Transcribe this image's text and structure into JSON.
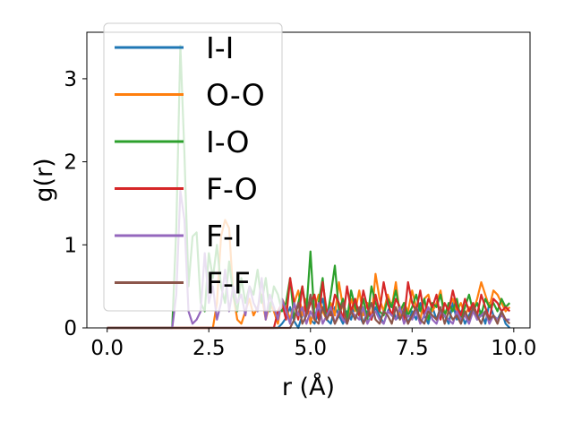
{
  "chart_data": {
    "type": "line",
    "title": "",
    "xlabel": "r (Å)",
    "ylabel": "g(r)",
    "xlim": [
      -0.5,
      10.4
    ],
    "ylim": [
      0,
      3.56
    ],
    "xticks": [
      0.0,
      2.5,
      5.0,
      7.5,
      10.0
    ],
    "xtick_labels": [
      "0.0",
      "2.5",
      "5.0",
      "7.5",
      "10.0"
    ],
    "yticks": [
      0,
      1,
      2,
      3
    ],
    "ytick_labels": [
      "0",
      "1",
      "2",
      "3"
    ],
    "grid": false,
    "legend_position": "top-left",
    "x": [
      0.0,
      0.2,
      0.4,
      0.6,
      0.8,
      1.0,
      1.2,
      1.4,
      1.6,
      1.7,
      1.8,
      1.9,
      2.0,
      2.1,
      2.2,
      2.3,
      2.4,
      2.5,
      2.6,
      2.7,
      2.8,
      2.9,
      3.0,
      3.1,
      3.2,
      3.3,
      3.4,
      3.5,
      3.6,
      3.7,
      3.8,
      3.9,
      4.0,
      4.1,
      4.2,
      4.3,
      4.4,
      4.5,
      4.6,
      4.7,
      4.8,
      4.9,
      5.0,
      5.1,
      5.2,
      5.3,
      5.4,
      5.5,
      5.6,
      5.7,
      5.8,
      5.9,
      6.0,
      6.1,
      6.2,
      6.3,
      6.4,
      6.5,
      6.6,
      6.7,
      6.8,
      6.9,
      7.0,
      7.1,
      7.2,
      7.3,
      7.4,
      7.5,
      7.6,
      7.7,
      7.8,
      7.9,
      8.0,
      8.1,
      8.2,
      8.3,
      8.4,
      8.5,
      8.6,
      8.7,
      8.8,
      8.9,
      9.0,
      9.1,
      9.2,
      9.3,
      9.4,
      9.5,
      9.6,
      9.7,
      9.8,
      9.9
    ],
    "series": [
      {
        "name": "I-I",
        "color": "#1f77b4",
        "values": [
          0,
          0,
          0,
          0,
          0,
          0,
          0,
          0,
          0,
          0,
          0,
          0,
          0,
          0,
          0,
          0,
          0,
          0,
          0,
          0,
          0,
          0,
          0,
          0,
          0,
          0,
          0,
          0,
          0,
          0,
          0,
          0,
          0,
          0,
          0,
          0.05,
          0.12,
          0.25,
          0.08,
          0,
          0.15,
          0.3,
          0.1,
          0.05,
          0.2,
          0.35,
          0.1,
          0.05,
          0.25,
          0.15,
          0.05,
          0.2,
          0.1,
          0.3,
          0.15,
          0.05,
          0.2,
          0.1,
          0.25,
          0.15,
          0.05,
          0.2,
          0.3,
          0.1,
          0.15,
          0.25,
          0.05,
          0.2,
          0.1,
          0.3,
          0.15,
          0.05,
          0.25,
          0.1,
          0.2,
          0.15,
          0.05,
          0.3,
          0.1,
          0.2,
          0.05,
          0.15,
          0.25,
          0.1,
          0.2,
          0.05,
          0.3,
          0.15,
          0.1,
          0.2,
          0.05,
          0
        ]
      },
      {
        "name": "O-O",
        "color": "#ff7f0e",
        "values": [
          0,
          0,
          0,
          0,
          0,
          0,
          0,
          0,
          0,
          0,
          0,
          0,
          0,
          0,
          0,
          0,
          0,
          0,
          0,
          0.3,
          1.1,
          1.3,
          1.2,
          0.4,
          0.1,
          0.05,
          0.2,
          0.35,
          0.15,
          0.25,
          0.4,
          0.1,
          0.3,
          0.2,
          0.05,
          0.35,
          0.25,
          0.1,
          0.3,
          0.45,
          0.15,
          0.35,
          0.05,
          0.25,
          0.4,
          0.2,
          0.1,
          0.3,
          0.15,
          0.55,
          0.25,
          0.05,
          0.35,
          0.2,
          0.45,
          0.15,
          0.3,
          0.1,
          0.65,
          0.35,
          0.2,
          0.4,
          0.25,
          0.55,
          0.15,
          0.3,
          0.2,
          0.45,
          0.25,
          0.1,
          0.35,
          0.4,
          0.2,
          0.3,
          0.45,
          0.15,
          0.25,
          0.35,
          0.2,
          0.3,
          0.15,
          0.25,
          0.2,
          0.35,
          0.55,
          0.4,
          0.25,
          0.45,
          0.4,
          0.3,
          0.2,
          0.25
        ]
      },
      {
        "name": "I-O",
        "color": "#2ca02c",
        "values": [
          0,
          0,
          0,
          0,
          0,
          0,
          0,
          0,
          0,
          1.2,
          3.4,
          2.1,
          0.5,
          1.1,
          1.15,
          0.3,
          0.2,
          0.9,
          0.6,
          1.0,
          0.5,
          0.3,
          0.8,
          0.4,
          0.2,
          0.6,
          0.3,
          0.5,
          0.4,
          0.7,
          0.3,
          0.6,
          0.2,
          0.5,
          0.4,
          0.2,
          0.3,
          0.6,
          0.1,
          0.3,
          0.5,
          0.2,
          0.92,
          0.1,
          0.3,
          0.6,
          0.1,
          0.4,
          0.75,
          0.2,
          0.35,
          0.1,
          0.45,
          0.25,
          0.15,
          0.35,
          0.1,
          0.5,
          0.3,
          0.2,
          0.15,
          0.35,
          0.25,
          0.45,
          0.2,
          0.3,
          0.15,
          0.25,
          0.4,
          0.2,
          0.35,
          0.1,
          0.3,
          0.25,
          0.4,
          0.15,
          0.3,
          0.2,
          0.35,
          0.1,
          0.25,
          0.4,
          0.2,
          0.3,
          0.15,
          0.35,
          0.25,
          0.3,
          0.2,
          0.35,
          0.25,
          0.3
        ]
      },
      {
        "name": "F-O",
        "color": "#d62728",
        "values": [
          0,
          0,
          0,
          0,
          0,
          0,
          0,
          0,
          0,
          0,
          0,
          0,
          0,
          0,
          0,
          0,
          0,
          0,
          0,
          0,
          0,
          0,
          0,
          0,
          0,
          0,
          0,
          0,
          0,
          0,
          0,
          0,
          0,
          0,
          0.2,
          0.3,
          0.1,
          0.6,
          0.3,
          0.1,
          0.5,
          0.15,
          0.3,
          0.4,
          0.1,
          0.55,
          0.2,
          0.15,
          0.4,
          0.3,
          0.1,
          0.5,
          0.2,
          0.35,
          0.15,
          0.45,
          0.25,
          0.1,
          0.4,
          0.2,
          0.55,
          0.3,
          0.15,
          0.35,
          0.25,
          0.1,
          0.55,
          0.3,
          0.2,
          0.45,
          0.15,
          0.35,
          0.25,
          0.4,
          0.1,
          0.3,
          0.2,
          0.45,
          0.25,
          0.15,
          0.35,
          0.2,
          0.3,
          0.15,
          0.4,
          0.25,
          0.1,
          0.35,
          0.3,
          0.2,
          0.25,
          0.2
        ]
      },
      {
        "name": "F-I",
        "color": "#9467bd",
        "values": [
          0,
          0,
          0,
          0,
          0,
          0,
          0,
          0,
          0,
          0.4,
          1.65,
          1.3,
          0.2,
          0.05,
          0.1,
          0.2,
          0.9,
          0.3,
          0.5,
          0.1,
          0.3,
          0.7,
          0.2,
          0.5,
          0.3,
          0.4,
          0.15,
          0.5,
          0.3,
          0.2,
          0.6,
          0.1,
          0.4,
          0.25,
          0.1,
          0.35,
          0.2,
          0.05,
          0.3,
          0.15,
          0.25,
          0.05,
          0.2,
          0.1,
          0.3,
          0.05,
          0.15,
          0.25,
          0.05,
          0.2,
          0.1,
          0.05,
          0.2,
          0.15,
          0.1,
          0.25,
          0.05,
          0.15,
          0.2,
          0.1,
          0.05,
          0.2,
          0.15,
          0.1,
          0.25,
          0.05,
          0.15,
          0.1,
          0.2,
          0.05,
          0.15,
          0.25,
          0.1,
          0.05,
          0.2,
          0.15,
          0.1,
          0.05,
          0.2,
          0.1,
          0.15,
          0.05,
          0.2,
          0.1,
          0.15,
          0.2,
          0.05,
          0.15,
          0.1,
          0.15,
          0.1,
          0.1
        ]
      },
      {
        "name": "F-F",
        "color": "#8c564b",
        "values": [
          0,
          0,
          0,
          0,
          0,
          0,
          0,
          0,
          0,
          0,
          0,
          0,
          0,
          0,
          0,
          0,
          0,
          0,
          0,
          0,
          0,
          0,
          0,
          0,
          0,
          0,
          0,
          0,
          0,
          0,
          0,
          0,
          0,
          0,
          0,
          0,
          0,
          0,
          0.1,
          0.3,
          0.05,
          0.15,
          0.4,
          0.1,
          0.05,
          0.25,
          0.1,
          0.2,
          0.05,
          0.15,
          0.3,
          0.05,
          0.2,
          0.1,
          0.25,
          0.05,
          0.15,
          0.3,
          0.1,
          0.05,
          0.2,
          0.15,
          0.05,
          0.25,
          0.1,
          0.2,
          0.05,
          0.15,
          0.25,
          0.1,
          0.05,
          0.2,
          0.15,
          0.1,
          0.25,
          0.05,
          0.2,
          0.1,
          0.15,
          0.05,
          0.2,
          0.1,
          0.25,
          0.15,
          0.05,
          0.2,
          0.1,
          0.15,
          0.05,
          0.2,
          0.1,
          0.05
        ]
      }
    ]
  }
}
